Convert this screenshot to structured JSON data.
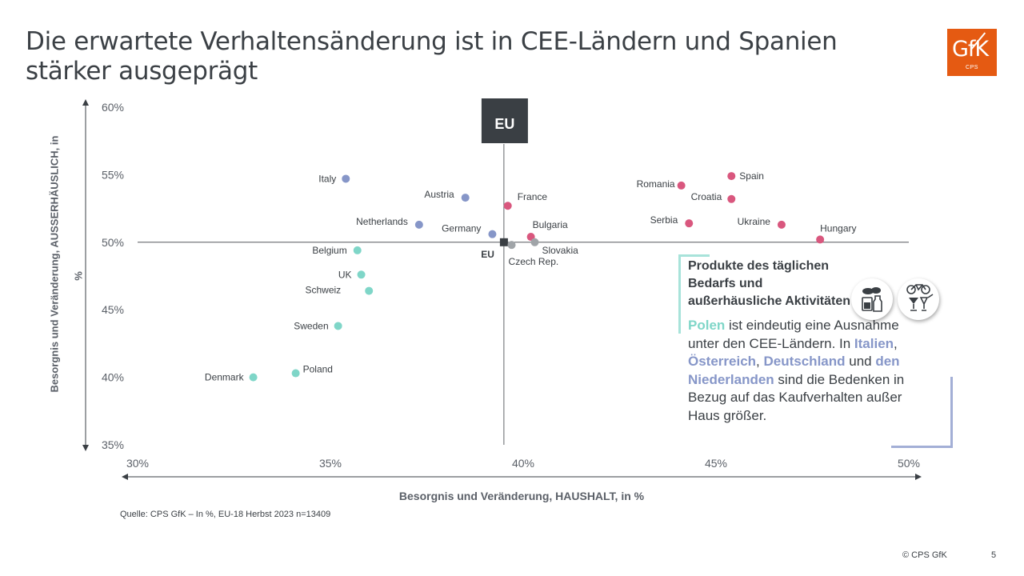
{
  "title": "Die erwartete Verhaltensänderung ist in CEE-Ländern und Spanien stärker ausgeprägt",
  "logo": {
    "text": "GfK",
    "sub": "CPS"
  },
  "colors": {
    "cee": "#d9577e",
    "west": "#8696c8",
    "north": "#7fd6c8",
    "other": "#a0a4a8",
    "eu": "#3a3f44"
  },
  "chart_data": {
    "type": "scatter",
    "xlabel": "Besorgnis und Veränderung, HAUSHALT, in %",
    "ylabel": "Besorgnis und Veränderung, AUSSERHÄUSLICH, in",
    "ylabel_unit": "%",
    "xlim": [
      30,
      50
    ],
    "ylim": [
      35,
      60
    ],
    "x_ticks": [
      "30%",
      "35%",
      "40%",
      "45%",
      "50%"
    ],
    "y_ticks": [
      "60%",
      "55%",
      "50%",
      "45%",
      "40%",
      "35%"
    ],
    "reference": {
      "label": "EU",
      "x": 39.5,
      "y": 50.0
    },
    "points": [
      {
        "name": "Italy",
        "x": 35.4,
        "y": 54.7,
        "group": "west"
      },
      {
        "name": "Austria",
        "x": 38.5,
        "y": 53.3,
        "group": "west"
      },
      {
        "name": "France",
        "x": 39.6,
        "y": 52.7,
        "group": "cee"
      },
      {
        "name": "Netherlands",
        "x": 37.3,
        "y": 51.3,
        "group": "west"
      },
      {
        "name": "Germany",
        "x": 39.2,
        "y": 50.6,
        "group": "west"
      },
      {
        "name": "Bulgaria",
        "x": 40.2,
        "y": 50.4,
        "group": "cee"
      },
      {
        "name": "Czech Rep.",
        "x": 39.7,
        "y": 49.8,
        "group": "other"
      },
      {
        "name": "Slovakia",
        "x": 40.3,
        "y": 50.0,
        "group": "other"
      },
      {
        "name": "Romania",
        "x": 44.1,
        "y": 54.2,
        "group": "cee"
      },
      {
        "name": "Spain",
        "x": 45.4,
        "y": 54.9,
        "group": "cee"
      },
      {
        "name": "Croatia",
        "x": 45.4,
        "y": 53.2,
        "group": "cee"
      },
      {
        "name": "Serbia",
        "x": 44.3,
        "y": 51.4,
        "group": "cee"
      },
      {
        "name": "Ukraine",
        "x": 46.7,
        "y": 51.3,
        "group": "cee"
      },
      {
        "name": "Hungary",
        "x": 47.7,
        "y": 50.2,
        "group": "cee"
      },
      {
        "name": "Belgium",
        "x": 35.7,
        "y": 49.4,
        "group": "north"
      },
      {
        "name": "UK",
        "x": 35.8,
        "y": 47.6,
        "group": "north"
      },
      {
        "name": "Schweiz",
        "x": 36.0,
        "y": 46.4,
        "group": "north"
      },
      {
        "name": "Sweden",
        "x": 35.2,
        "y": 43.8,
        "group": "north"
      },
      {
        "name": "Poland",
        "x": 34.1,
        "y": 40.3,
        "group": "north"
      },
      {
        "name": "Denmark",
        "x": 33.0,
        "y": 40.0,
        "group": "north"
      }
    ]
  },
  "callout": {
    "heading": "Produkte des täglichen Bedarfs und außerhäusliche Aktivitäten",
    "body": [
      {
        "t": "Polen",
        "style": "teal"
      },
      {
        "t": " ist eindeutig eine Ausnahme unter den CEE-Ländern. In ",
        "style": "plain"
      },
      {
        "t": "Italien",
        "style": "blue"
      },
      {
        "t": ", ",
        "style": "plain"
      },
      {
        "t": "Österreich",
        "style": "blue"
      },
      {
        "t": ", ",
        "style": "plain"
      },
      {
        "t": "Deutschland",
        "style": "blue"
      },
      {
        "t": " und ",
        "style": "plain"
      },
      {
        "t": "den Niederlanden",
        "style": "blue"
      },
      {
        "t": " sind die Bedenken in Bezug auf das Kaufverhalten außer Haus größer.",
        "style": "plain"
      }
    ],
    "icons": [
      "groceries-icon",
      "leisure-icon"
    ]
  },
  "footer": {
    "source": "Quelle: CPS GfK – In %, EU-18 Herbst 2023  n=13409",
    "copyright": "© CPS GfK",
    "page": "5"
  }
}
